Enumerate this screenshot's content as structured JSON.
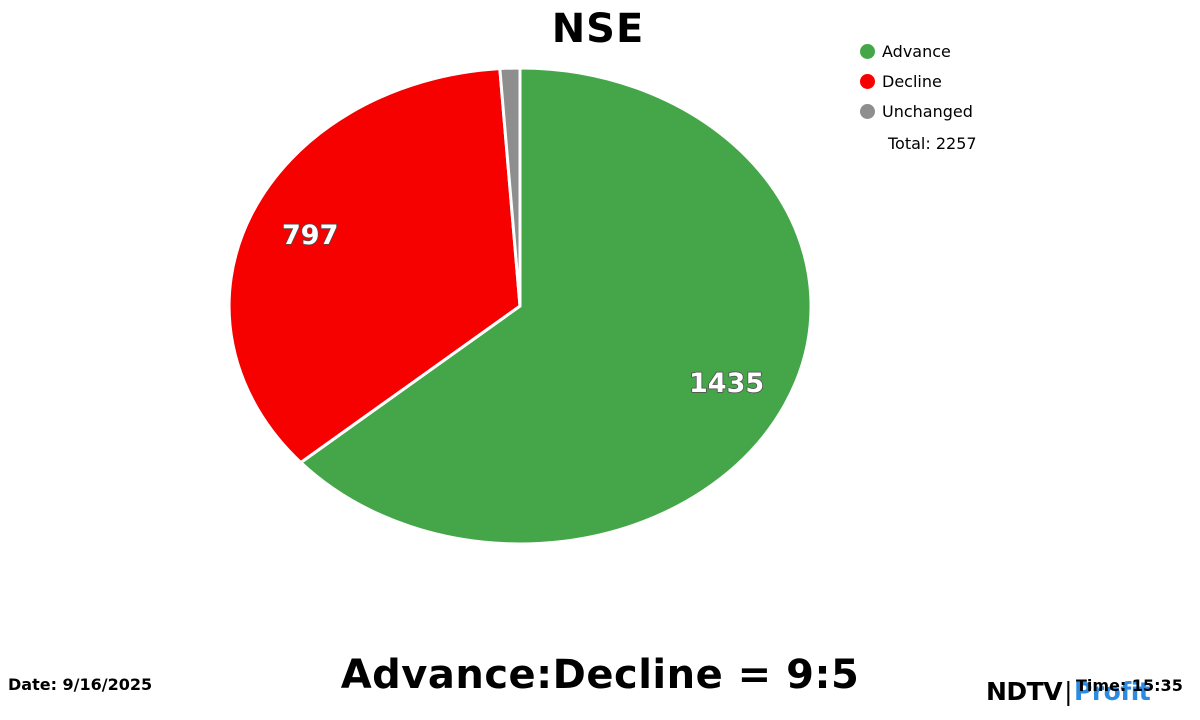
{
  "title": "NSE",
  "legend": {
    "items": [
      {
        "label": "Advance",
        "color": "#44a649"
      },
      {
        "label": "Decline",
        "color": "#f70000"
      },
      {
        "label": "Unchanged",
        "color": "#8e8e8e"
      }
    ],
    "total_label": "Total: 2257"
  },
  "chart_data": {
    "type": "pie",
    "title": "NSE",
    "labels": [
      "Advance",
      "Decline",
      "Unchanged"
    ],
    "values": [
      1435,
      797,
      25
    ],
    "colors": [
      "#44a649",
      "#f70000",
      "#8e8e8e"
    ],
    "slice_labels": [
      "1435",
      "797",
      ""
    ],
    "total": 2257,
    "start_angle_deg": 90,
    "direction": "clockwise",
    "legend_position": "top-right"
  },
  "footer": {
    "date": "Date: 9/16/2025",
    "ratio": "Advance:Decline = 9:5",
    "time": "Time: 15:35",
    "logo": {
      "ndtv": "NDTV",
      "separator": "|",
      "profit": "Profit",
      "ndtv_color": "#000000",
      "profit_color": "#2b8ae2"
    }
  }
}
